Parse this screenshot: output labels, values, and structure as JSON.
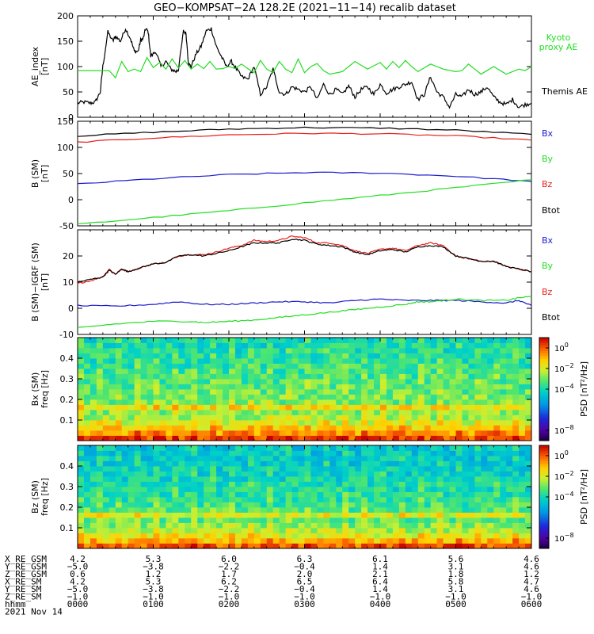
{
  "title": "GEO−KOMPSAT−2A 128.2E (2021−11−14) recalib dataset",
  "colors": {
    "black": "#000000",
    "red": "#e8211c",
    "blue": "#1a1acc",
    "green": "#22dd22",
    "kyoto": "#22dd22"
  },
  "chart_data": [
    {
      "type": "line",
      "panel": "ae",
      "ylabel": "AE_index",
      "yunit": "[nT]",
      "ylim": [
        0,
        200
      ],
      "yticks": [
        0,
        50,
        100,
        150,
        200
      ],
      "legend": [
        "Kyoto proxy AE",
        "Themis AE"
      ],
      "series": [
        {
          "name": "Themis AE",
          "color": "#000000",
          "x": [
            0,
            5,
            10,
            14,
            18,
            20,
            24,
            28,
            30,
            34,
            38,
            42,
            45,
            48,
            50,
            52,
            54,
            56,
            58,
            62,
            66,
            70,
            74,
            78,
            80,
            84,
            86,
            88,
            90,
            94,
            98,
            102,
            106,
            110,
            114,
            118,
            122,
            126,
            130,
            135,
            140,
            145,
            150,
            155,
            160,
            165,
            170,
            175,
            180,
            185,
            190,
            195,
            200,
            205,
            210,
            215,
            220,
            225,
            230,
            235,
            240,
            245,
            250,
            255,
            260,
            265,
            270,
            275,
            280,
            285,
            290,
            295,
            300,
            305,
            310,
            315,
            320,
            325,
            330,
            335,
            340,
            345,
            350,
            355,
            360
          ],
          "y": [
            28,
            30,
            28,
            30,
            50,
            100,
            168,
            150,
            160,
            150,
            175,
            155,
            130,
            130,
            152,
            155,
            175,
            168,
            120,
            130,
            100,
            110,
            95,
            90,
            95,
            170,
            165,
            105,
            100,
            125,
            140,
            170,
            175,
            140,
            120,
            100,
            110,
            95,
            80,
            75,
            100,
            45,
            60,
            95,
            50,
            45,
            60,
            55,
            50,
            60,
            35,
            65,
            45,
            55,
            45,
            62,
            40,
            55,
            60,
            45,
            65,
            48,
            55,
            60,
            65,
            70,
            35,
            45,
            80,
            50,
            40,
            20,
            45,
            40,
            55,
            45,
            50,
            60,
            40,
            30,
            25,
            35,
            20,
            25,
            28
          ]
        },
        {
          "name": "Kyoto proxy AE",
          "color": "#22dd22",
          "x": [
            0,
            20,
            25,
            30,
            35,
            40,
            45,
            50,
            55,
            60,
            65,
            70,
            75,
            80,
            85,
            90,
            95,
            100,
            105,
            110,
            115,
            120,
            125,
            130,
            135,
            140,
            145,
            150,
            155,
            160,
            165,
            170,
            175,
            180,
            185,
            190,
            195,
            200,
            210,
            220,
            230,
            240,
            245,
            250,
            255,
            260,
            265,
            270,
            280,
            290,
            300,
            305,
            310,
            320,
            330,
            340,
            350,
            355,
            360
          ],
          "y": [
            92,
            92,
            92,
            78,
            110,
            90,
            95,
            90,
            118,
            98,
            108,
            95,
            115,
            97,
            112,
            95,
            105,
            96,
            110,
            95,
            96,
            100,
            96,
            105,
            96,
            88,
            112,
            95,
            88,
            110,
            95,
            88,
            115,
            88,
            100,
            106,
            92,
            85,
            90,
            110,
            95,
            108,
            95,
            110,
            98,
            112,
            100,
            90,
            105,
            95,
            90,
            92,
            105,
            85,
            100,
            85,
            95,
            92,
            100
          ]
        }
      ]
    },
    {
      "type": "line",
      "panel": "bsm",
      "ylabel": "B (SM)",
      "yunit": "[nT]",
      "ylim": [
        -50,
        150
      ],
      "yticks": [
        -50,
        0,
        50,
        100,
        150
      ],
      "legend": [
        "Bx",
        "By",
        "Bz",
        "Btot"
      ],
      "series": [
        {
          "name": "Btot",
          "color": "#000000",
          "x": [
            0,
            60,
            120,
            180,
            240,
            300,
            360
          ],
          "y": [
            122,
            129,
            135,
            138,
            137,
            133,
            125
          ]
        },
        {
          "name": "Bz",
          "color": "#e8211c",
          "x": [
            0,
            60,
            120,
            180,
            240,
            300,
            360
          ],
          "y": [
            110,
            118,
            124,
            127,
            126,
            122,
            114
          ]
        },
        {
          "name": "Bx",
          "color": "#1a1acc",
          "x": [
            0,
            60,
            120,
            180,
            240,
            300,
            360
          ],
          "y": [
            30,
            40,
            48,
            52,
            51,
            45,
            35
          ]
        },
        {
          "name": "By",
          "color": "#22dd22",
          "x": [
            0,
            60,
            120,
            180,
            240,
            300,
            360
          ],
          "y": [
            -47,
            -34,
            -21,
            -6,
            8,
            23,
            38
          ]
        }
      ]
    },
    {
      "type": "line",
      "panel": "dbsm",
      "ylabel": "B (SM)−IGRF (SM)",
      "yunit": "[nT]",
      "ylim": [
        -10,
        30
      ],
      "yticks": [
        -10,
        0,
        10,
        20
      ],
      "legend": [
        "Bx",
        "By",
        "Bz",
        "Btot"
      ],
      "series": [
        {
          "name": "Bz",
          "color": "#e8211c",
          "x": [
            0,
            10,
            20,
            25,
            30,
            35,
            40,
            50,
            60,
            70,
            80,
            90,
            100,
            110,
            120,
            130,
            140,
            150,
            160,
            170,
            180,
            190,
            200,
            210,
            220,
            230,
            240,
            250,
            260,
            270,
            280,
            290,
            300,
            310,
            320,
            330,
            340,
            350,
            360
          ],
          "y": [
            9.5,
            10.5,
            12,
            15,
            13,
            15,
            14,
            15.5,
            17,
            17.5,
            20,
            20.5,
            20.5,
            21.5,
            23,
            24,
            26,
            25.5,
            26,
            27.5,
            27,
            25,
            25,
            24,
            22,
            21,
            22.5,
            23,
            22,
            24,
            25,
            24,
            20,
            19,
            18,
            18,
            16,
            15,
            14
          ]
        },
        {
          "name": "Btot",
          "color": "#000000",
          "x": [
            0,
            10,
            20,
            25,
            30,
            35,
            40,
            50,
            60,
            70,
            80,
            90,
            100,
            110,
            120,
            130,
            140,
            150,
            160,
            170,
            180,
            190,
            200,
            210,
            220,
            230,
            240,
            250,
            260,
            270,
            280,
            290,
            300,
            310,
            320,
            330,
            340,
            350,
            360
          ],
          "y": [
            10,
            11,
            12,
            14.5,
            13,
            15,
            14,
            15.5,
            17,
            17.5,
            20,
            20.5,
            20,
            21,
            22,
            23.5,
            25,
            25,
            25,
            26.5,
            26,
            24.5,
            24,
            23.5,
            21.5,
            20.5,
            22,
            22.5,
            21.5,
            23.5,
            24,
            23.5,
            20,
            19,
            18,
            18,
            16,
            15,
            14
          ]
        },
        {
          "name": "Bx",
          "color": "#1a1acc",
          "x": [
            0,
            30,
            60,
            80,
            100,
            120,
            140,
            160,
            180,
            200,
            220,
            240,
            260,
            280,
            300,
            320,
            340,
            350,
            360
          ],
          "y": [
            1,
            0.8,
            1.5,
            2.5,
            1.5,
            1.5,
            2,
            2.5,
            2.5,
            2,
            3,
            3.5,
            3,
            3,
            3,
            2.5,
            2,
            3,
            1
          ]
        },
        {
          "name": "By",
          "color": "#22dd22",
          "x": [
            0,
            30,
            60,
            90,
            100,
            120,
            140,
            160,
            180,
            200,
            220,
            240,
            260,
            270,
            280,
            290,
            300,
            320,
            340,
            350,
            360
          ],
          "y": [
            -7.5,
            -6,
            -5,
            -5,
            -5.5,
            -5,
            -4.5,
            -3.5,
            -2.5,
            -1.5,
            -0.5,
            0.5,
            1.5,
            2.5,
            2.5,
            3,
            3.5,
            3,
            3,
            4,
            4.5
          ]
        }
      ]
    },
    {
      "type": "heatmap",
      "panel": "specx",
      "ylabel": "Bx (SM)",
      "yunit": "freq [Hz]",
      "ylim": [
        0,
        0.5
      ],
      "yticks": [
        0.1,
        0.2,
        0.3,
        0.4
      ],
      "colorbar": {
        "label": "PSD [nT²/Hz]",
        "log10_range": [
          -9,
          1
        ],
        "tick_log10": [
          0,
          -2,
          -4,
          -8
        ]
      },
      "freq_bins": [
        0.0125,
        0.0375,
        0.0625,
        0.0875,
        0.1125,
        0.1375,
        0.1625,
        0.1875,
        0.2125,
        0.2375,
        0.2625,
        0.2875,
        0.3125,
        0.3375,
        0.3625,
        0.3875,
        0.4125,
        0.4375,
        0.4625,
        0.4875
      ],
      "log10_psd_profile": [
        0.2,
        -0.6,
        -1.4,
        -2.0,
        -2.5,
        -2.8,
        -1.6,
        -2.9,
        -3.0,
        -3.1,
        -3.2,
        -3.3,
        -3.4,
        -3.5,
        -3.6,
        -3.7,
        -3.8,
        -3.9,
        -4.0,
        -4.0
      ]
    },
    {
      "type": "heatmap",
      "panel": "specz",
      "ylabel": "Bz (SM)",
      "yunit": "freq [Hz]",
      "ylim": [
        0,
        0.5
      ],
      "yticks": [
        0.1,
        0.2,
        0.3,
        0.4
      ],
      "colorbar": {
        "label": "PSD [nT²/Hz]",
        "log10_range": [
          -9,
          1
        ],
        "tick_log10": [
          0,
          -2,
          -4,
          -8
        ]
      },
      "freq_bins": [
        0.0125,
        0.0375,
        0.0625,
        0.0875,
        0.1125,
        0.1375,
        0.1625,
        0.1875,
        0.2125,
        0.2375,
        0.2625,
        0.2875,
        0.3125,
        0.3375,
        0.3625,
        0.3875,
        0.4125,
        0.4375,
        0.4625,
        0.4875
      ],
      "log10_psd_profile": [
        0.0,
        -1.0,
        -1.8,
        -2.4,
        -2.8,
        -3.2,
        -2.0,
        -3.3,
        -3.5,
        -3.7,
        -3.8,
        -3.9,
        -4.0,
        -4.1,
        -4.2,
        -4.3,
        -4.4,
        -4.4,
        -4.5,
        -4.5
      ]
    }
  ],
  "xaxis": {
    "range_minutes": [
      0,
      360
    ],
    "tick_minutes": [
      0,
      60,
      120,
      180,
      240,
      300,
      360
    ]
  },
  "ephemeris": {
    "labels": [
      "X_RE_GSM",
      "Y_RE_GSM",
      "Z_RE_GSM",
      "X_RE_SM",
      "Y_RE_SM",
      "Z_RE_SM",
      "hhmm",
      "2021 Nov 14"
    ],
    "rows": [
      [
        "4.2",
        "5.3",
        "6.0",
        "6.3",
        "6.1",
        "5.6",
        "4.6"
      ],
      [
        "−5.0",
        "−3.8",
        "−2.2",
        "−0.4",
        "1.4",
        "3.1",
        "4.6"
      ],
      [
        "0.6",
        "1.2",
        "1.7",
        "2.0",
        "2.1",
        "1.8",
        "1.2"
      ],
      [
        "4.2",
        "5.3",
        "6.2",
        "6.5",
        "6.4",
        "5.8",
        "4.7"
      ],
      [
        "−5.0",
        "−3.8",
        "−2.2",
        "−0.4",
        "1.4",
        "3.1",
        "4.6"
      ],
      [
        "−1.0",
        "−1.0",
        "−1.0",
        "−1.0",
        "−1.0",
        "−1.0",
        "−1.0"
      ],
      [
        "0000",
        "0100",
        "0200",
        "0300",
        "0400",
        "0500",
        "0600"
      ]
    ]
  }
}
